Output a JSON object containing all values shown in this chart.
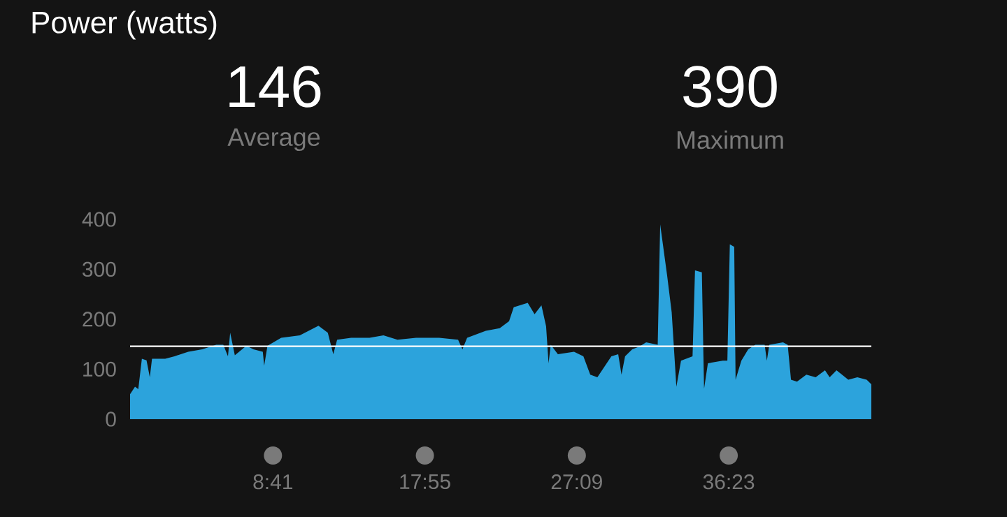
{
  "chart_data": {
    "type": "area",
    "title": "Power (watts)",
    "annotations": [
      "146",
      "Average",
      "390",
      "Maximum"
    ],
    "x": [
      0,
      18,
      30,
      43,
      60,
      72,
      80,
      128,
      162,
      212,
      263,
      314,
      340,
      357,
      365,
      382,
      424,
      450,
      484,
      489,
      501,
      551,
      619,
      687,
      721,
      741,
      755,
      806,
      873,
      924,
      975,
      1043,
      1127,
      1196,
      1212,
      1229,
      1297,
      1348,
      1382,
      1399,
      1450,
      1475,
      1500,
      1517,
      1526,
      1534,
      1560,
      1619,
      1653,
      1678,
      1704,
      1755,
      1780,
      1792,
      1805,
      1831,
      1856,
      1882,
      1924,
      1933,
      1958,
      1975,
      1992,
      2009,
      2051,
      2060,
      2085,
      2093,
      2107,
      2161,
      2178,
      2187,
      2203,
      2208,
      2229,
      2254,
      2280,
      2314,
      2322,
      2331,
      2381,
      2398,
      2410,
      2432,
      2466,
      2500,
      2534,
      2551,
      2576,
      2619,
      2652,
      2686,
      2703
    ],
    "series": [
      {
        "color": "#2ca3dc",
        "values": [
          50,
          65,
          60,
          121,
          118,
          84,
          121,
          121,
          126,
          135,
          140,
          149,
          149,
          126,
          173,
          128,
          147,
          140,
          135,
          107,
          147,
          163,
          168,
          187,
          173,
          130,
          159,
          163,
          163,
          168,
          159,
          163,
          163,
          159,
          140,
          163,
          177,
          182,
          196,
          224,
          233,
          210,
          228,
          186,
          112,
          149,
          130,
          135,
          126,
          89,
          84,
          126,
          130,
          89,
          126,
          140,
          145,
          154,
          149,
          390,
          289,
          214,
          65,
          117,
          126,
          298,
          294,
          61,
          112,
          117,
          117,
          350,
          345,
          79,
          117,
          140,
          149,
          149,
          117,
          149,
          154,
          149,
          79,
          75,
          89,
          84,
          98,
          84,
          98,
          79,
          84,
          79,
          70
        ]
      }
    ],
    "xlim": [
      0,
      2703
    ],
    "xticks": [
      {
        "value": 521,
        "label": "8:41"
      },
      {
        "value": 1075,
        "label": "17:55"
      },
      {
        "value": 1629,
        "label": "27:09"
      },
      {
        "value": 2183,
        "label": "36:23"
      }
    ],
    "ylim": [
      0,
      400
    ],
    "yticks": [
      0,
      100,
      200,
      300,
      400
    ],
    "ref_lines": [
      {
        "axis": "y",
        "value": 146,
        "color": "#ffffff"
      }
    ],
    "grid": false
  }
}
